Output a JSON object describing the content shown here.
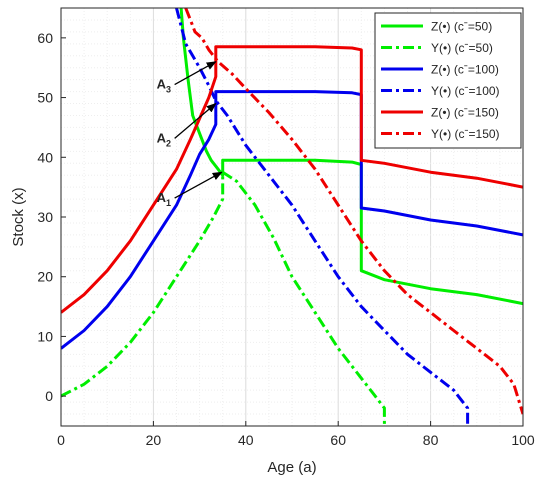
{
  "chart_data": {
    "type": "line",
    "xlabel": "Age (a)",
    "ylabel": "Stock (x)",
    "xlim": [
      0,
      100
    ],
    "ylim": [
      -5,
      65
    ],
    "xticks": [
      0,
      20,
      40,
      60,
      80,
      100
    ],
    "yticks": [
      0,
      10,
      20,
      30,
      40,
      50,
      60
    ],
    "grid": true,
    "legend_position": "top-right",
    "series": [
      {
        "name": "Z(•) (cˉ=50)",
        "color": "#00ee00",
        "dash": "solid",
        "points": [
          [
            26,
            65
          ],
          [
            26.5,
            60
          ],
          [
            27.5,
            53
          ],
          [
            28.5,
            47
          ],
          [
            30,
            44
          ],
          [
            31.5,
            41
          ],
          [
            32.5,
            39.5
          ],
          [
            33.5,
            38.5
          ],
          [
            34.5,
            37.5
          ],
          [
            35,
            37
          ],
          [
            35,
            39.5
          ],
          [
            45,
            39.5
          ],
          [
            55,
            39.5
          ],
          [
            63,
            39.2
          ],
          [
            65,
            38.8
          ],
          [
            65,
            21
          ],
          [
            70,
            19.5
          ],
          [
            80,
            18
          ],
          [
            90,
            17
          ],
          [
            100,
            15.5
          ]
        ]
      },
      {
        "name": "Y(•) (cˉ=50)",
        "color": "#00ee00",
        "dash": "dashed",
        "points": [
          [
            0,
            0
          ],
          [
            5,
            2
          ],
          [
            10,
            5
          ],
          [
            15,
            9
          ],
          [
            20,
            14
          ],
          [
            25,
            20
          ],
          [
            30,
            26
          ],
          [
            33,
            30
          ],
          [
            35,
            33
          ],
          [
            35,
            37.5
          ],
          [
            38,
            36
          ],
          [
            42,
            32
          ],
          [
            46,
            26.5
          ],
          [
            50,
            20
          ],
          [
            55,
            14
          ],
          [
            60,
            8
          ],
          [
            65,
            3
          ],
          [
            68,
            0
          ],
          [
            70,
            -2
          ],
          [
            70,
            -5
          ]
        ]
      },
      {
        "name": "Z(•) (cˉ=100)",
        "color": "#0000ee",
        "dash": "solid",
        "points": [
          [
            0,
            8
          ],
          [
            5,
            11
          ],
          [
            10,
            15
          ],
          [
            15,
            20
          ],
          [
            20,
            26
          ],
          [
            25,
            32
          ],
          [
            28,
            37
          ],
          [
            30,
            40.5
          ],
          [
            32,
            43
          ],
          [
            33.5,
            45.5
          ],
          [
            33.5,
            51
          ],
          [
            45,
            51
          ],
          [
            55,
            51
          ],
          [
            63,
            50.8
          ],
          [
            65,
            50.5
          ],
          [
            65,
            31.5
          ],
          [
            70,
            31
          ],
          [
            80,
            29.5
          ],
          [
            90,
            28.5
          ],
          [
            100,
            27
          ]
        ]
      },
      {
        "name": "Y(•) (cˉ=100)",
        "color": "#0000ee",
        "dash": "dashed",
        "points": [
          [
            25,
            65
          ],
          [
            26,
            62
          ],
          [
            27,
            59
          ],
          [
            28.5,
            57
          ],
          [
            30,
            55
          ],
          [
            32,
            52
          ],
          [
            33.5,
            49.5
          ],
          [
            36,
            47
          ],
          [
            40,
            42
          ],
          [
            45,
            37
          ],
          [
            50,
            32
          ],
          [
            55,
            26
          ],
          [
            60,
            20
          ],
          [
            65,
            15
          ],
          [
            70,
            11
          ],
          [
            75,
            7
          ],
          [
            80,
            4
          ],
          [
            85,
            1
          ],
          [
            87,
            -1
          ],
          [
            88,
            -2
          ],
          [
            88,
            -5
          ]
        ]
      },
      {
        "name": "Z(•) (cˉ=150)",
        "color": "#ee0000",
        "dash": "solid",
        "points": [
          [
            0,
            14
          ],
          [
            5,
            17
          ],
          [
            10,
            21
          ],
          [
            15,
            26
          ],
          [
            20,
            32
          ],
          [
            25,
            38
          ],
          [
            28,
            43
          ],
          [
            30,
            46.5
          ],
          [
            32,
            50
          ],
          [
            33.5,
            53.5
          ],
          [
            33.5,
            58.5
          ],
          [
            45,
            58.5
          ],
          [
            55,
            58.5
          ],
          [
            63,
            58.3
          ],
          [
            65,
            58
          ],
          [
            65,
            39.5
          ],
          [
            70,
            39
          ],
          [
            80,
            37.5
          ],
          [
            90,
            36.5
          ],
          [
            100,
            35
          ]
        ]
      },
      {
        "name": "Y(•) (cˉ=150)",
        "color": "#ee0000",
        "dash": "dashed",
        "points": [
          [
            27,
            65
          ],
          [
            28,
            63
          ],
          [
            29,
            61
          ],
          [
            30.5,
            60
          ],
          [
            32,
            58
          ],
          [
            34,
            56
          ],
          [
            37,
            54
          ],
          [
            40,
            51.5
          ],
          [
            45,
            47.5
          ],
          [
            50,
            43
          ],
          [
            55,
            38
          ],
          [
            60,
            32
          ],
          [
            65,
            26
          ],
          [
            70,
            21
          ],
          [
            75,
            17
          ],
          [
            80,
            14
          ],
          [
            85,
            11
          ],
          [
            90,
            8
          ],
          [
            95,
            5
          ],
          [
            98,
            2
          ],
          [
            100,
            -3
          ]
        ]
      }
    ],
    "annotations": [
      {
        "label": "A",
        "sub": "1",
        "text_xy": [
          22,
          32.5
        ],
        "target_xy": [
          34.8,
          37.5
        ]
      },
      {
        "label": "A",
        "sub": "2",
        "text_xy": [
          22,
          42.5
        ],
        "target_xy": [
          33.5,
          49
        ]
      },
      {
        "label": "A",
        "sub": "3",
        "text_xy": [
          22,
          51.5
        ],
        "target_xy": [
          33.5,
          56
        ]
      }
    ]
  }
}
